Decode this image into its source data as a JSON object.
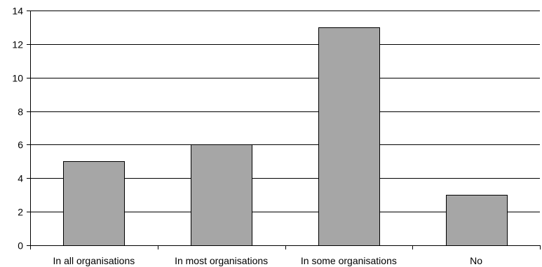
{
  "colors": {
    "bar_fill": "#a6a6a6",
    "bar_stroke": "#000000",
    "grid": "#000000",
    "axis": "#000000",
    "background": "#ffffff"
  },
  "chart_data": {
    "type": "bar",
    "categories": [
      "In all organisations",
      "In most organisations",
      "In some organisations",
      "No"
    ],
    "values": [
      5,
      6,
      13,
      3
    ],
    "title": "",
    "xlabel": "",
    "ylabel": "",
    "ylim": [
      0,
      14
    ],
    "yticks": [
      0,
      2,
      4,
      6,
      8,
      10,
      12,
      14
    ],
    "grid": true,
    "legend": "none"
  }
}
